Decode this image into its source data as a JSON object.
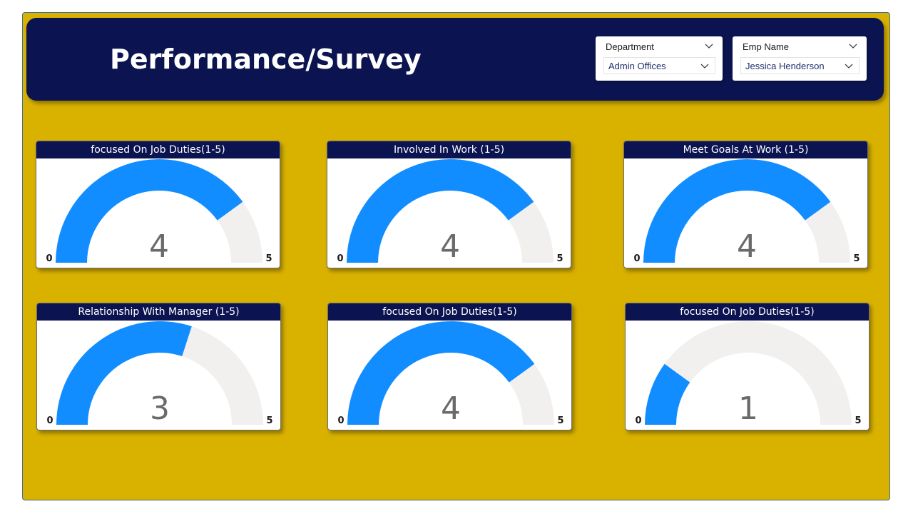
{
  "header": {
    "title": "Performance/Survey"
  },
  "filters": [
    {
      "label": "Department",
      "value": "Admin Offices"
    },
    {
      "label": "Emp Name",
      "value": "Jessica Henderson"
    }
  ],
  "colors": {
    "background": "#d9b200",
    "header": "#0b1450",
    "gauge_fill": "#118dff",
    "gauge_track": "#f1f0ef"
  },
  "gauges": [
    {
      "title": "focused On Job Duties(1-5)",
      "value": 4,
      "value_label": "4",
      "min": 0,
      "max": 5,
      "min_label": "0",
      "max_label": "5"
    },
    {
      "title": "Involved In Work (1-5)",
      "value": 4,
      "value_label": "4",
      "min": 0,
      "max": 5,
      "min_label": "0",
      "max_label": "5"
    },
    {
      "title": "Meet Goals At Work (1-5)",
      "value": 4,
      "value_label": "4",
      "min": 0,
      "max": 5,
      "min_label": "0",
      "max_label": "5"
    },
    {
      "title": "Relationship With Manager (1-5)",
      "value": 3,
      "value_label": "3",
      "min": 0,
      "max": 5,
      "min_label": "0",
      "max_label": "5"
    },
    {
      "title": "focused On Job Duties(1-5)",
      "value": 4,
      "value_label": "4",
      "min": 0,
      "max": 5,
      "min_label": "0",
      "max_label": "5"
    },
    {
      "title": "focused On Job Duties(1-5)",
      "value": 1,
      "value_label": "1",
      "min": 0,
      "max": 5,
      "min_label": "0",
      "max_label": "5"
    }
  ]
}
